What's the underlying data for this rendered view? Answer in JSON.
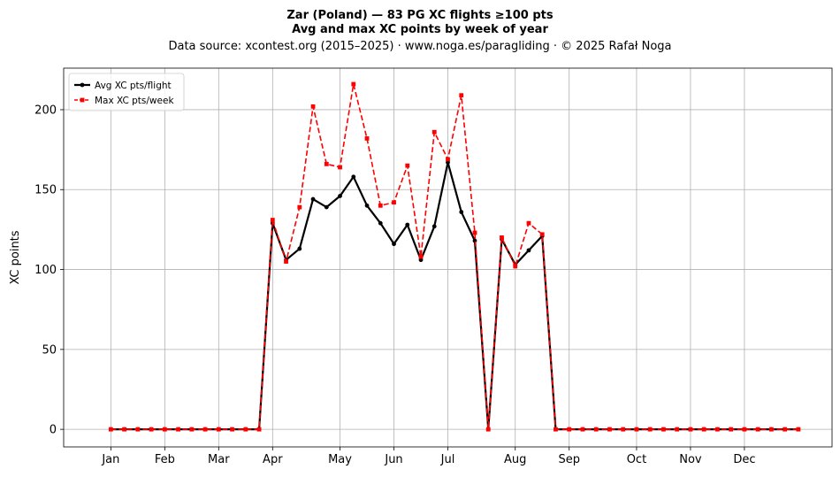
{
  "header": {
    "title_line1": "Zar (Poland)  —  83 PG XC flights ≥100 pts",
    "title_line2": "Avg and max XC points by week of year",
    "title_line3": "Data source: xcontest.org (2015–2025)  ·  www.noga.es/paragliding  ·  © 2025 Rafał Noga"
  },
  "chart_data": {
    "type": "line",
    "title": "Zar (Poland)  —  83 PG XC flights ≥100 pts",
    "subtitle": "Avg and max XC points by week of year",
    "xlabel": "",
    "ylabel": "XC points",
    "xlim": [
      -2.5,
      54.5
    ],
    "ylim": [
      -11,
      226
    ],
    "grid": true,
    "legend_position": "upper-left",
    "month_ticks": [
      {
        "label": "Jan",
        "week": 1
      },
      {
        "label": "Feb",
        "week": 5
      },
      {
        "label": "Mar",
        "week": 9
      },
      {
        "label": "Apr",
        "week": 13
      },
      {
        "label": "May",
        "week": 18
      },
      {
        "label": "Jun",
        "week": 22
      },
      {
        "label": "Jul",
        "week": 26
      },
      {
        "label": "Aug",
        "week": 31
      },
      {
        "label": "Sep",
        "week": 35
      },
      {
        "label": "Oct",
        "week": 40
      },
      {
        "label": "Nov",
        "week": 44
      },
      {
        "label": "Dec",
        "week": 48
      }
    ],
    "y_ticks": [
      0,
      50,
      100,
      150,
      200
    ],
    "x": [
      1,
      2,
      3,
      4,
      5,
      6,
      7,
      8,
      9,
      10,
      11,
      12,
      13,
      14,
      15,
      16,
      17,
      18,
      19,
      20,
      21,
      22,
      23,
      24,
      25,
      26,
      27,
      28,
      29,
      30,
      31,
      32,
      33,
      34,
      35,
      36,
      37,
      38,
      39,
      40,
      41,
      42,
      43,
      44,
      45,
      46,
      47,
      48,
      49,
      50,
      51,
      52
    ],
    "series": [
      {
        "name": "Avg XC pts/flight",
        "color": "#000000",
        "line_style": "solid",
        "marker": "circle",
        "values": [
          0,
          0,
          0,
          0,
          0,
          0,
          0,
          0,
          0,
          0,
          0,
          0,
          129,
          106,
          113,
          144,
          139,
          146,
          158,
          140,
          129,
          116,
          128,
          106,
          127,
          167,
          136,
          118,
          0,
          119,
          103,
          112,
          121,
          0,
          0,
          0,
          0,
          0,
          0,
          0,
          0,
          0,
          0,
          0,
          0,
          0,
          0,
          0,
          0,
          0,
          0,
          0
        ]
      },
      {
        "name": "Max XC pts/week",
        "color": "#ff0000",
        "line_style": "dashed",
        "marker": "square",
        "values": [
          0,
          0,
          0,
          0,
          0,
          0,
          0,
          0,
          0,
          0,
          0,
          0,
          131,
          105,
          139,
          202,
          166,
          164,
          216,
          182,
          140,
          142,
          165,
          108,
          186,
          169,
          209,
          123,
          0,
          120,
          102,
          129,
          122,
          0,
          0,
          0,
          0,
          0,
          0,
          0,
          0,
          0,
          0,
          0,
          0,
          0,
          0,
          0,
          0,
          0,
          0,
          0
        ]
      }
    ]
  }
}
